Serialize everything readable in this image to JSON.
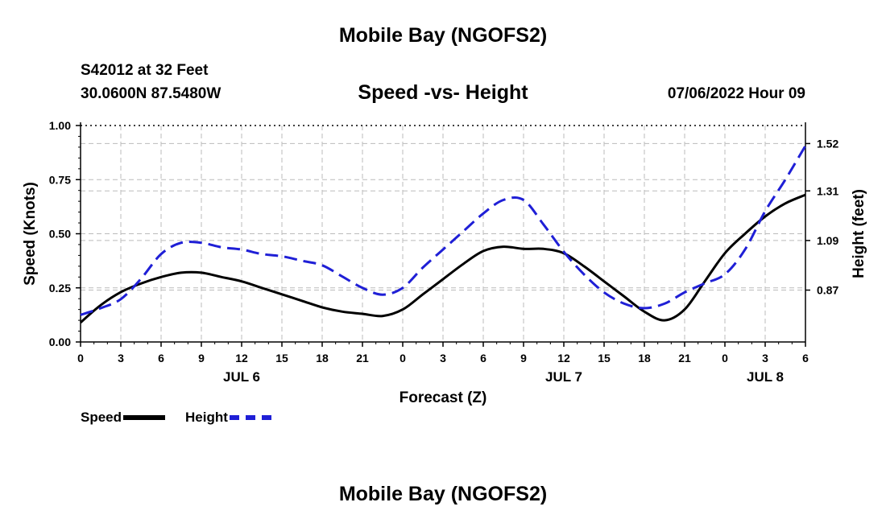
{
  "header": {
    "title": "Mobile Bay (NGOFS2)",
    "station": "S42012 at 32 Feet",
    "coords": "30.0600N  87.5480W",
    "chart_title": "Speed -vs- Height",
    "run_time": "07/06/2022 Hour 09"
  },
  "footer": {
    "title": "Mobile Bay (NGOFS2)"
  },
  "legend": {
    "items": [
      {
        "label": "Speed",
        "color": "#000000"
      },
      {
        "label": "Height",
        "color": "#1f1fd6"
      }
    ]
  },
  "colors": {
    "speed": "#000000",
    "height": "#1f1fd6",
    "grid": "#bbbbbb"
  },
  "chart_data": {
    "type": "line",
    "title": "Speed -vs- Height",
    "xlabel": "Forecast (Z)",
    "ylabel": "Speed (Knots)",
    "y2label": "Height (feet)",
    "x_range": [
      0,
      54
    ],
    "ylim": [
      0,
      1
    ],
    "y2lim": [
      0.64,
      1.6
    ],
    "grid": true,
    "legend": "bottom-left",
    "x_ticks": [
      {
        "x": 0,
        "label": "0"
      },
      {
        "x": 3,
        "label": "3"
      },
      {
        "x": 6,
        "label": "6"
      },
      {
        "x": 9,
        "label": "9"
      },
      {
        "x": 12,
        "label": "12"
      },
      {
        "x": 15,
        "label": "15"
      },
      {
        "x": 18,
        "label": "18"
      },
      {
        "x": 21,
        "label": "21"
      },
      {
        "x": 24,
        "label": "0"
      },
      {
        "x": 27,
        "label": "3"
      },
      {
        "x": 30,
        "label": "6"
      },
      {
        "x": 33,
        "label": "9"
      },
      {
        "x": 36,
        "label": "12"
      },
      {
        "x": 39,
        "label": "15"
      },
      {
        "x": 42,
        "label": "18"
      },
      {
        "x": 45,
        "label": "21"
      },
      {
        "x": 48,
        "label": "0"
      },
      {
        "x": 51,
        "label": "3"
      },
      {
        "x": 54,
        "label": "6"
      }
    ],
    "date_labels": [
      {
        "x": 12,
        "label": "JUL 6"
      },
      {
        "x": 36,
        "label": "JUL 7"
      },
      {
        "x": 51,
        "label": "JUL 8"
      }
    ],
    "y_ticks": [
      {
        "y": 0.0,
        "label": "0.00"
      },
      {
        "y": 0.25,
        "label": "0.25"
      },
      {
        "y": 0.5,
        "label": "0.50"
      },
      {
        "y": 0.75,
        "label": "0.75"
      },
      {
        "y": 1.0,
        "label": "1.00"
      }
    ],
    "y2_ticks": [
      {
        "y": 0.87,
        "label": "0.87"
      },
      {
        "y": 1.09,
        "label": "1.09"
      },
      {
        "y": 1.31,
        "label": "1.31"
      },
      {
        "y": 1.52,
        "label": "1.52"
      }
    ],
    "series": [
      {
        "name": "Speed",
        "axis": "left",
        "style": "solid",
        "x": [
          0,
          1.5,
          3,
          4.5,
          6,
          7.5,
          9,
          10.5,
          12,
          13.5,
          15,
          16.5,
          18,
          19.5,
          21,
          22.5,
          24,
          25.5,
          27,
          28.5,
          30,
          31.5,
          33,
          34.5,
          36,
          37.5,
          39,
          40.5,
          42,
          43.5,
          45,
          46.5,
          48,
          49.5,
          51,
          52.5,
          54
        ],
        "values": [
          0.09,
          0.17,
          0.23,
          0.27,
          0.3,
          0.32,
          0.32,
          0.3,
          0.28,
          0.25,
          0.22,
          0.19,
          0.16,
          0.14,
          0.13,
          0.12,
          0.15,
          0.22,
          0.29,
          0.36,
          0.42,
          0.44,
          0.43,
          0.43,
          0.41,
          0.35,
          0.28,
          0.21,
          0.14,
          0.1,
          0.15,
          0.28,
          0.41,
          0.5,
          0.58,
          0.64,
          0.68
        ]
      },
      {
        "name": "Height",
        "axis": "right",
        "style": "dashed",
        "x": [
          0,
          1.5,
          3,
          4.5,
          6,
          7.5,
          9,
          10.5,
          12,
          13.5,
          15,
          16.5,
          18,
          19.5,
          21,
          22.5,
          24,
          25.5,
          27,
          28.5,
          30,
          31.5,
          33,
          34.5,
          36,
          37.5,
          39,
          40.5,
          42,
          43.5,
          45,
          46.5,
          48,
          49.5,
          51,
          52.5,
          54
        ],
        "values": [
          0.76,
          0.79,
          0.83,
          0.92,
          1.03,
          1.08,
          1.08,
          1.06,
          1.05,
          1.03,
          1.02,
          1.0,
          0.98,
          0.93,
          0.88,
          0.85,
          0.88,
          0.97,
          1.05,
          1.13,
          1.21,
          1.27,
          1.27,
          1.16,
          1.04,
          0.94,
          0.86,
          0.81,
          0.79,
          0.81,
          0.86,
          0.9,
          0.94,
          1.05,
          1.22,
          1.36,
          1.51
        ]
      }
    ]
  }
}
